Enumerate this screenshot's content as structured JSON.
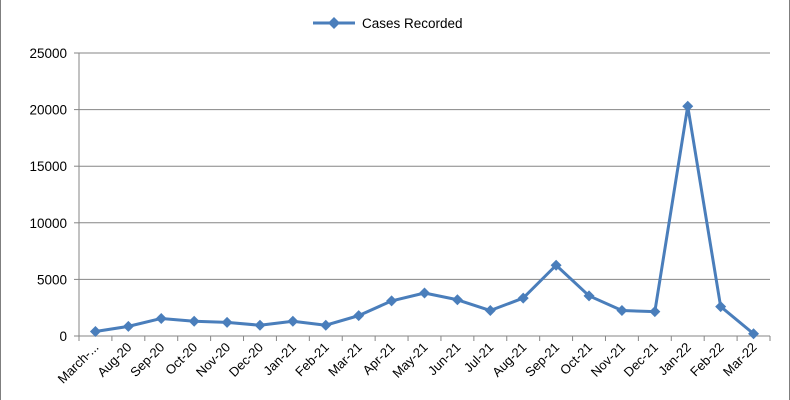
{
  "chart_data": {
    "type": "line",
    "categories": [
      "March-...",
      "Aug-20",
      "Sep-20",
      "Oct-20",
      "Nov-20",
      "Dec-20",
      "Jan-21",
      "Feb-21",
      "Mar-21",
      "Apr-21",
      "May-21",
      "Jun-21",
      "Jul-21",
      "Aug-21",
      "Sep-21",
      "Oct-21",
      "Nov-21",
      "Dec-21",
      "Jan-22",
      "Feb-22",
      "Mar-22"
    ],
    "series": [
      {
        "name": "Cases Recorded",
        "values": [
          400,
          850,
          1550,
          1300,
          1200,
          950,
          1300,
          950,
          1800,
          3100,
          3800,
          3200,
          2250,
          3350,
          6250,
          3550,
          2250,
          2150,
          20300,
          2600,
          200
        ]
      }
    ],
    "y_ticks": [
      "0",
      "5000",
      "10000",
      "15000",
      "20000",
      "25000"
    ],
    "ylim": [
      0,
      25000
    ],
    "title": "",
    "xlabel": "",
    "ylabel": "",
    "legend_position": "top-center",
    "grid": "horizontal",
    "colors": {
      "series": "#4a7ebb",
      "grid": "#868686",
      "axis": "#868686"
    }
  }
}
